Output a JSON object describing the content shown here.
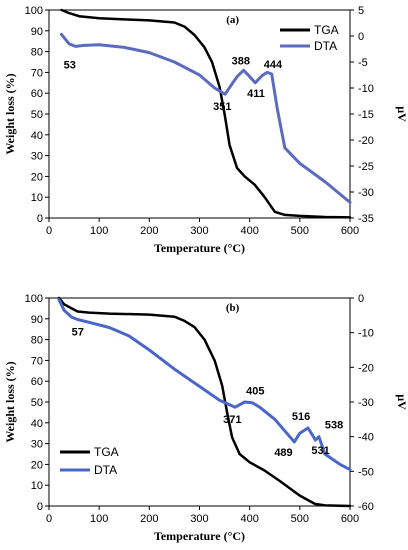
{
  "chart_data": [
    {
      "type": "line",
      "panel_label": "(a)",
      "xlabel": "Temperature (°C)",
      "ylabel": "Weight loss (%)",
      "y2label": "µV",
      "xlim": [
        0,
        600
      ],
      "ylim": [
        0,
        100
      ],
      "y2lim": [
        -35,
        5
      ],
      "xticks": [
        0,
        100,
        200,
        300,
        400,
        500,
        600
      ],
      "yticks": [
        0,
        10,
        20,
        30,
        40,
        50,
        60,
        70,
        80,
        90,
        100
      ],
      "y2ticks": [
        5,
        0,
        -5,
        -10,
        -15,
        -20,
        -25,
        -30,
        -35
      ],
      "legend_position": "top-right",
      "series": [
        {
          "name": "TGA",
          "axis": "left",
          "color": "#000000",
          "x": [
            25,
            40,
            60,
            100,
            150,
            200,
            250,
            270,
            290,
            310,
            325,
            340,
            350,
            360,
            375,
            390,
            410,
            430,
            450,
            470,
            500,
            550,
            600
          ],
          "y": [
            100,
            98.5,
            97,
            96,
            95.5,
            95,
            94,
            92,
            88,
            82,
            75,
            63,
            50,
            35,
            24,
            20,
            16,
            10,
            3,
            1.5,
            1,
            0.5,
            0.3
          ]
        },
        {
          "name": "DTA",
          "axis": "right",
          "color": "#5b6bc0",
          "x": [
            25,
            40,
            53,
            70,
            100,
            150,
            200,
            250,
            300,
            330,
            351,
            365,
            375,
            388,
            400,
            411,
            425,
            435,
            444,
            455,
            470,
            500,
            550,
            600
          ],
          "y": [
            0.3,
            -1.5,
            -2,
            -1.8,
            -1.7,
            -2.2,
            -3.2,
            -5,
            -7.5,
            -10,
            -11.2,
            -9.2,
            -7.8,
            -6.6,
            -7.8,
            -9,
            -7.6,
            -7,
            -7.3,
            -14,
            -21.5,
            -24.5,
            -28,
            -32
          ]
        }
      ],
      "annotations": [
        {
          "text": "53",
          "x": 53,
          "y": -2
        },
        {
          "text": "351",
          "x": 351,
          "y": -11.2
        },
        {
          "text": "388",
          "x": 388,
          "y": -6.6
        },
        {
          "text": "411",
          "x": 411,
          "y": -9
        },
        {
          "text": "444",
          "x": 444,
          "y": -7.3
        }
      ]
    },
    {
      "type": "line",
      "panel_label": "(b)",
      "xlabel": "Temperature (°C)",
      "ylabel": "Weight loss (%)",
      "y2label": "µV",
      "xlim": [
        0,
        600
      ],
      "ylim": [
        0,
        100
      ],
      "y2lim": [
        -60,
        0
      ],
      "xticks": [
        0,
        100,
        200,
        300,
        400,
        500,
        600
      ],
      "yticks": [
        0,
        10,
        20,
        30,
        40,
        50,
        60,
        70,
        80,
        90,
        100
      ],
      "y2ticks": [
        0,
        -10,
        -20,
        -30,
        -40,
        -50,
        -60
      ],
      "legend_position": "bottom-left",
      "series": [
        {
          "name": "TGA",
          "axis": "left",
          "color": "#000000",
          "x": [
            20,
            30,
            45,
            57,
            80,
            120,
            200,
            250,
            270,
            290,
            310,
            330,
            345,
            355,
            365,
            380,
            400,
            430,
            460,
            500,
            530,
            550,
            600
          ],
          "y": [
            100,
            97,
            95,
            93.5,
            93,
            92.5,
            92,
            91,
            89,
            86,
            80,
            70,
            58,
            45,
            33,
            25,
            21,
            17,
            12,
            5,
            1,
            0.3,
            0
          ]
        },
        {
          "name": "DTA",
          "axis": "right",
          "color": "#4a66c9",
          "x": [
            20,
            30,
            45,
            57,
            80,
            120,
            160,
            200,
            250,
            300,
            340,
            371,
            390,
            405,
            420,
            450,
            480,
            489,
            500,
            516,
            525,
            531,
            538,
            550,
            580,
            600
          ],
          "y": [
            -0.5,
            -3.5,
            -5.5,
            -6.2,
            -7,
            -8.5,
            -11,
            -15,
            -20.5,
            -25.5,
            -29.5,
            -31.5,
            -30,
            -30.2,
            -31.5,
            -35,
            -40,
            -41.5,
            -39,
            -37.5,
            -39.5,
            -41,
            -40,
            -45,
            -48,
            -49.5
          ]
        }
      ],
      "annotations": [
        {
          "text": "57",
          "x": 57,
          "y": -6.2
        },
        {
          "text": "405",
          "x": 405,
          "y": -30.2
        },
        {
          "text": "371",
          "x": 371,
          "y": -31.5
        },
        {
          "text": "516",
          "x": 516,
          "y": -37.5
        },
        {
          "text": "538",
          "x": 538,
          "y": -40
        },
        {
          "text": "489",
          "x": 489,
          "y": -41.5
        },
        {
          "text": "531",
          "x": 531,
          "y": -41
        }
      ]
    }
  ]
}
